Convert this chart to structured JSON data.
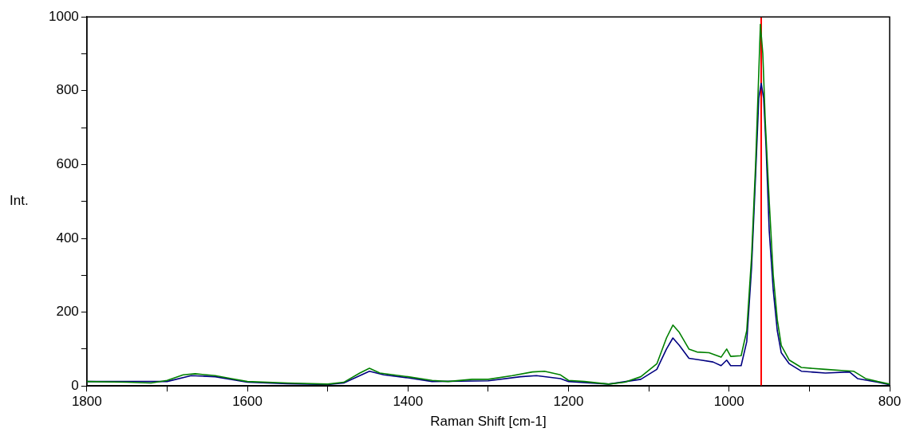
{
  "chart_data": {
    "type": "line",
    "xlabel": "Raman Shift [cm-1]",
    "ylabel": "Int.",
    "xlim": [
      1800,
      800
    ],
    "ylim": [
      0,
      1000
    ],
    "xticks": [
      1800,
      {
        "value": 1700,
        "label": null
      },
      1600,
      {
        "value": 1500,
        "label": null
      },
      1400,
      {
        "value": 1300,
        "label": null
      },
      1200,
      {
        "value": 1100,
        "label": null
      },
      1000,
      {
        "value": 900,
        "label": null
      },
      800
    ],
    "yticks": [
      0,
      {
        "value": 100,
        "label": null
      },
      200,
      {
        "value": 300,
        "label": null
      },
      400,
      {
        "value": 500,
        "label": null
      },
      600,
      {
        "value": 700,
        "label": null
      },
      800,
      {
        "value": 900,
        "label": null
      },
      1000
    ],
    "grid": false,
    "legend": false,
    "marker": "none",
    "line_style": "solid",
    "series": [
      {
        "color": "#008000",
        "x": [
          1800,
          1750,
          1720,
          1700,
          1680,
          1665,
          1640,
          1620,
          1600,
          1550,
          1500,
          1480,
          1460,
          1448,
          1435,
          1400,
          1370,
          1350,
          1320,
          1300,
          1270,
          1245,
          1230,
          1210,
          1200,
          1180,
          1150,
          1130,
          1110,
          1090,
          1078,
          1070,
          1062,
          1050,
          1040,
          1025,
          1010,
          1003,
          998,
          985,
          978,
          972,
          967,
          963,
          961,
          958,
          955,
          950,
          945,
          940,
          935,
          925,
          910,
          880,
          860,
          845,
          830,
          815,
          800
        ],
        "values": [
          12,
          10,
          8,
          15,
          30,
          33,
          28,
          20,
          12,
          8,
          5,
          10,
          35,
          48,
          35,
          25,
          15,
          12,
          18,
          18,
          28,
          38,
          40,
          30,
          15,
          12,
          5,
          10,
          25,
          60,
          130,
          165,
          145,
          100,
          92,
          90,
          78,
          100,
          80,
          82,
          150,
          350,
          600,
          850,
          980,
          900,
          720,
          500,
          300,
          180,
          110,
          70,
          50,
          45,
          42,
          40,
          20,
          12,
          5
        ]
      },
      {
        "color": "#000080",
        "x": [
          1800,
          1700,
          1670,
          1640,
          1600,
          1550,
          1500,
          1480,
          1448,
          1430,
          1400,
          1370,
          1300,
          1260,
          1240,
          1210,
          1200,
          1150,
          1110,
          1090,
          1078,
          1070,
          1062,
          1050,
          1035,
          1020,
          1010,
          1003,
          998,
          985,
          978,
          972,
          967,
          963,
          960,
          957,
          954,
          950,
          945,
          940,
          935,
          925,
          910,
          880,
          850,
          840,
          815,
          800
        ],
        "values": [
          12,
          12,
          28,
          25,
          10,
          6,
          4,
          8,
          40,
          30,
          22,
          12,
          14,
          25,
          28,
          20,
          12,
          5,
          18,
          45,
          100,
          130,
          110,
          75,
          70,
          65,
          55,
          70,
          55,
          55,
          120,
          320,
          570,
          780,
          820,
          780,
          650,
          420,
          260,
          150,
          90,
          60,
          40,
          35,
          38,
          20,
          10,
          3
        ]
      }
    ],
    "ref_lines": [
      {
        "axis": "x",
        "value": 960,
        "color": "#ff0000"
      }
    ]
  }
}
